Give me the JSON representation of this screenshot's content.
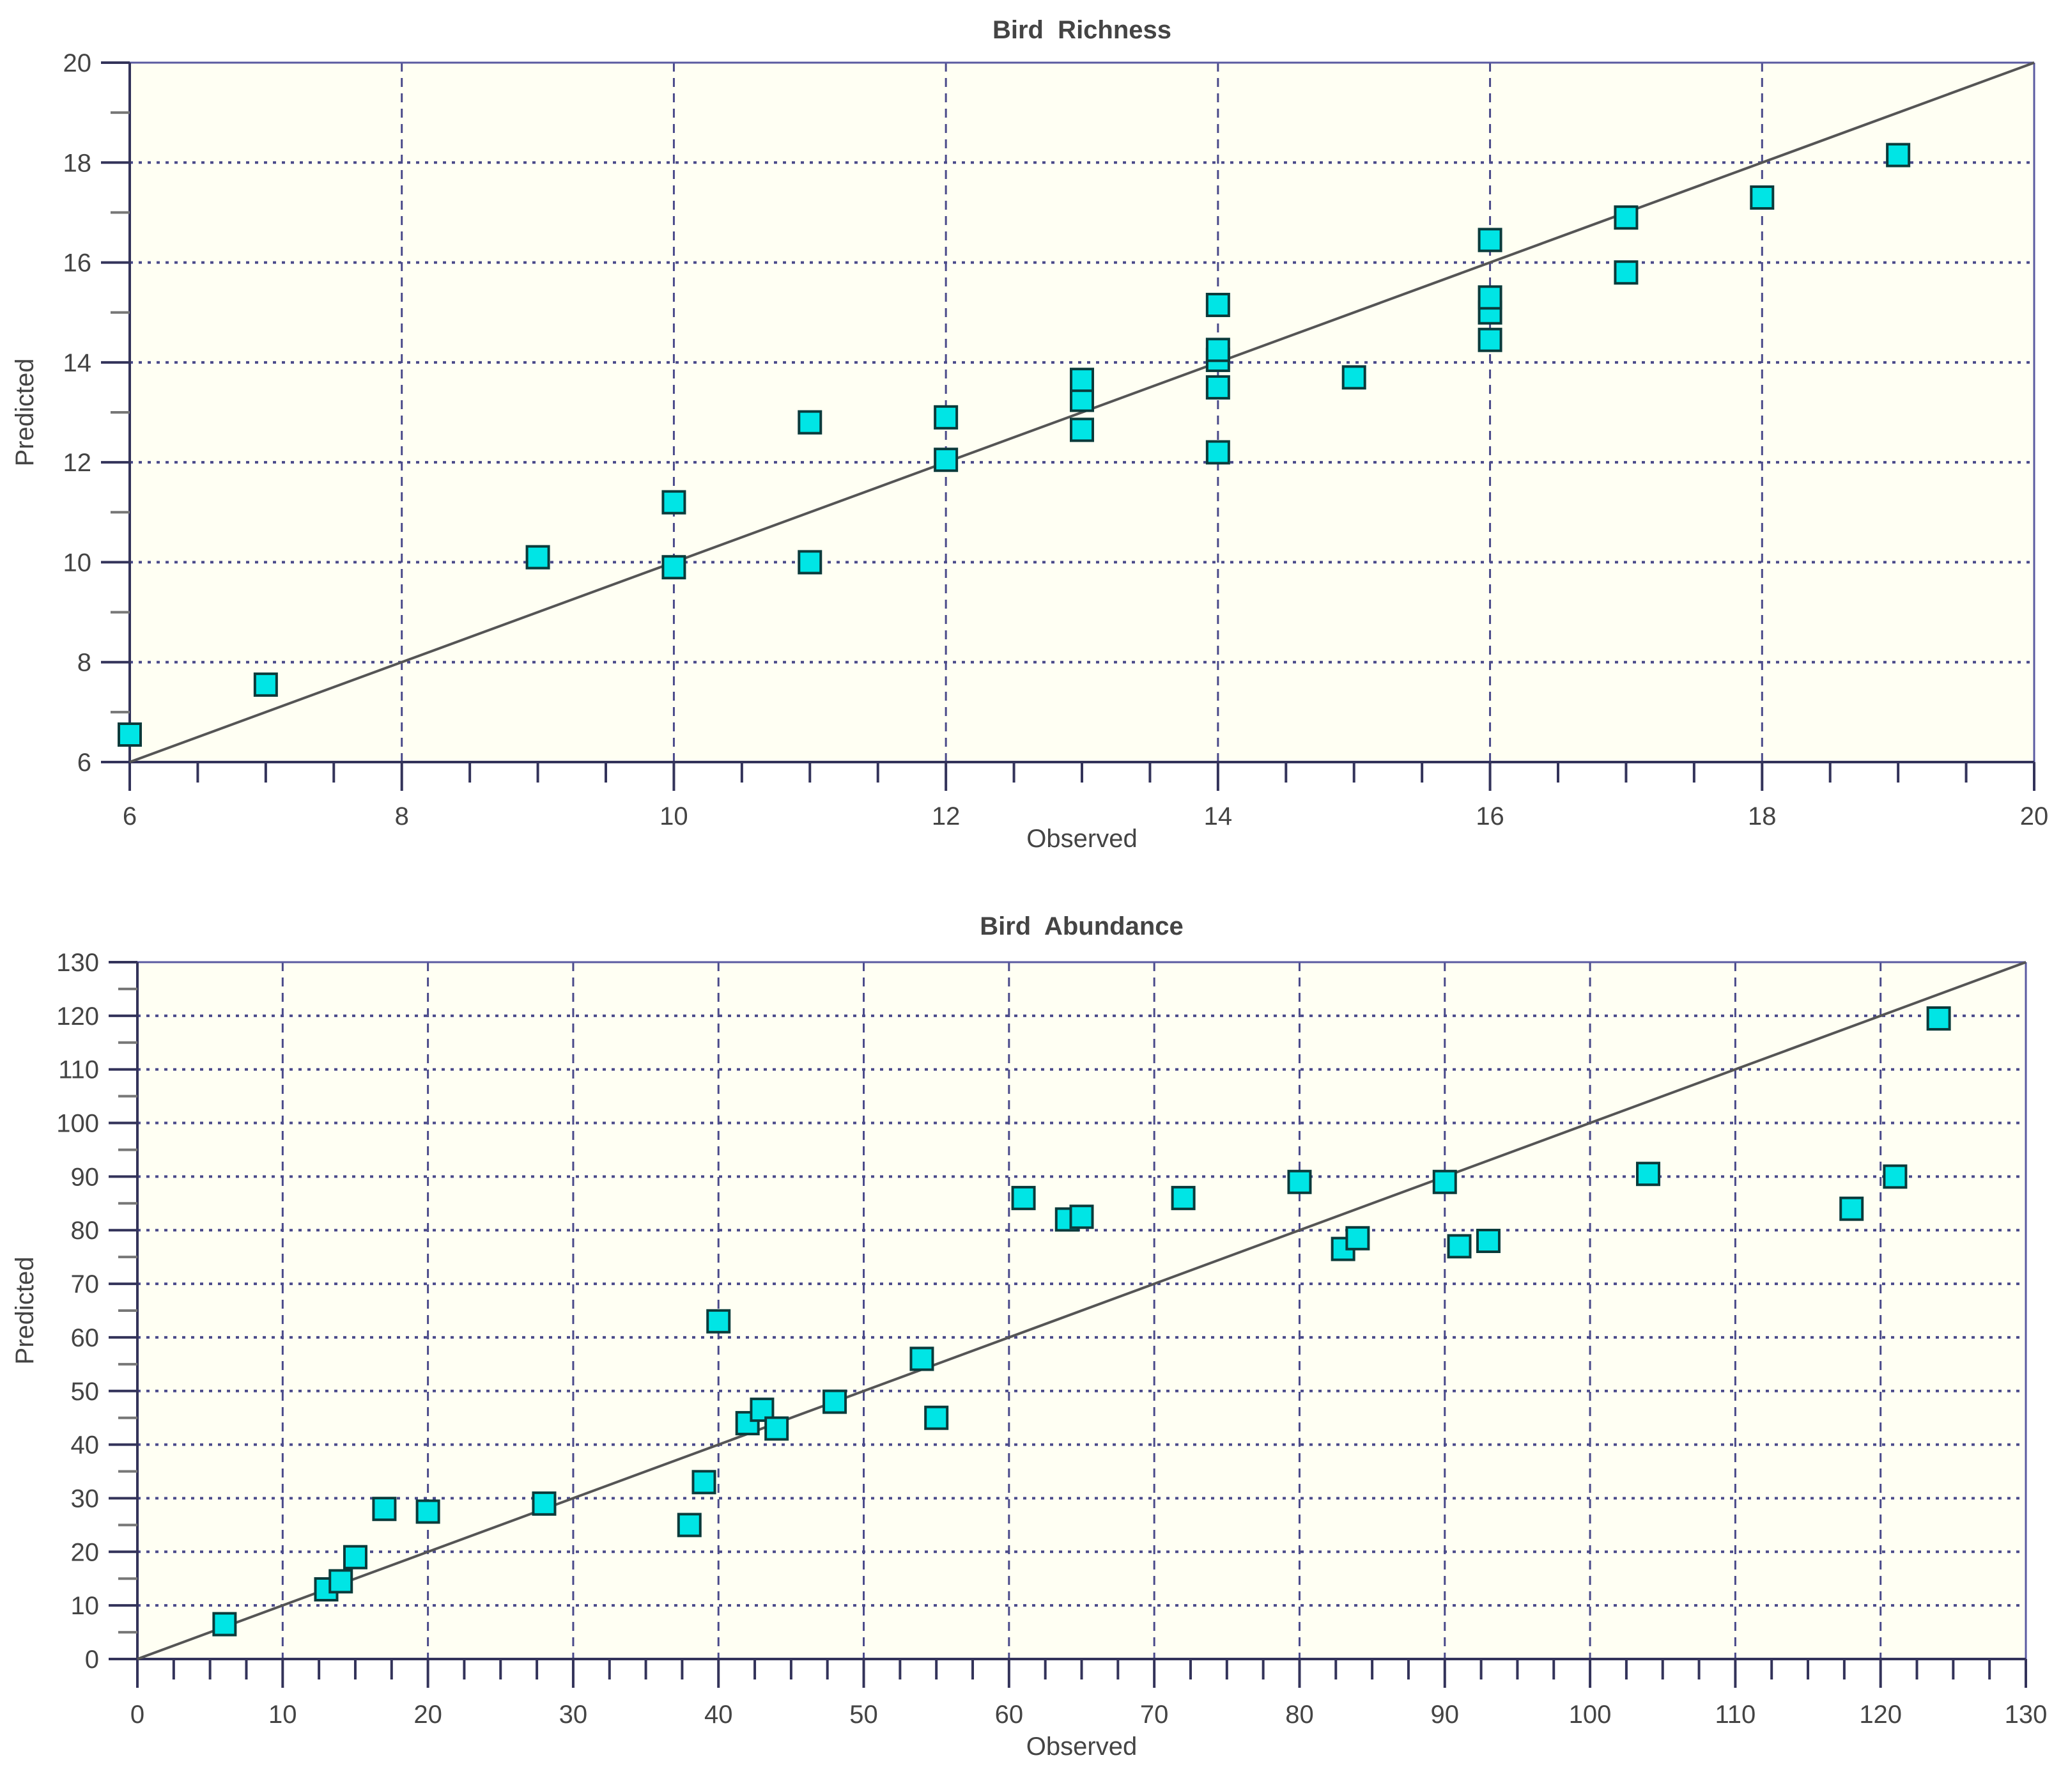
{
  "chart_data": [
    {
      "type": "scatter",
      "title": "Bird  Richness",
      "xlabel": "Observed",
      "ylabel": "Predicted",
      "xlim": [
        6,
        20
      ],
      "ylim": [
        6,
        20
      ],
      "xticks": [
        6,
        8,
        10,
        12,
        14,
        16,
        18,
        20
      ],
      "yticks": [
        6,
        8,
        10,
        12,
        14,
        16,
        18,
        20
      ],
      "grid": true,
      "reference_line": "y = x",
      "marker": "square",
      "marker_color": "#00e5e5",
      "background": "#fffff3",
      "points": [
        [
          6,
          6.55
        ],
        [
          7,
          7.55
        ],
        [
          9,
          10.1
        ],
        [
          10,
          9.9
        ],
        [
          10,
          11.2
        ],
        [
          11,
          10.0
        ],
        [
          11,
          12.8
        ],
        [
          12,
          12.05
        ],
        [
          12,
          12.9
        ],
        [
          13,
          12.65
        ],
        [
          13,
          13.25
        ],
        [
          13,
          13.65
        ],
        [
          14,
          12.2
        ],
        [
          14,
          13.5
        ],
        [
          14,
          14.05
        ],
        [
          14,
          14.25
        ],
        [
          14,
          15.15
        ],
        [
          15,
          13.7
        ],
        [
          16,
          14.45
        ],
        [
          16,
          15.0
        ],
        [
          16,
          15.3
        ],
        [
          16,
          16.45
        ],
        [
          17,
          15.8
        ],
        [
          17,
          16.9
        ],
        [
          18,
          17.3
        ],
        [
          19,
          18.15
        ]
      ]
    },
    {
      "type": "scatter",
      "title": "Bird  Abundance",
      "xlabel": "Observed",
      "ylabel": "Predicted",
      "xlim": [
        0,
        130
      ],
      "ylim": [
        0,
        130
      ],
      "xticks": [
        0,
        10,
        20,
        30,
        40,
        50,
        60,
        70,
        80,
        90,
        100,
        110,
        120,
        130
      ],
      "yticks": [
        0,
        10,
        20,
        30,
        40,
        50,
        60,
        70,
        80,
        90,
        100,
        110,
        120,
        130
      ],
      "grid": true,
      "reference_line": "y = x",
      "marker": "square",
      "marker_color": "#00e5e5",
      "background": "#fffff3",
      "points": [
        [
          6,
          6.5
        ],
        [
          13,
          13
        ],
        [
          14,
          14.5
        ],
        [
          15,
          19
        ],
        [
          17,
          28
        ],
        [
          20,
          27.5
        ],
        [
          28,
          29
        ],
        [
          38,
          25
        ],
        [
          39,
          33
        ],
        [
          40,
          63
        ],
        [
          42,
          44
        ],
        [
          43,
          46.5
        ],
        [
          44,
          43
        ],
        [
          48,
          48
        ],
        [
          54,
          56
        ],
        [
          55,
          45
        ],
        [
          61,
          86
        ],
        [
          64,
          82
        ],
        [
          65,
          82.5
        ],
        [
          72,
          86
        ],
        [
          80,
          89
        ],
        [
          83,
          76.5
        ],
        [
          84,
          78.5
        ],
        [
          90,
          89
        ],
        [
          91,
          77
        ],
        [
          93,
          78
        ],
        [
          104,
          90.5
        ],
        [
          118,
          84
        ],
        [
          121,
          90
        ],
        [
          124,
          119.5
        ]
      ]
    }
  ]
}
